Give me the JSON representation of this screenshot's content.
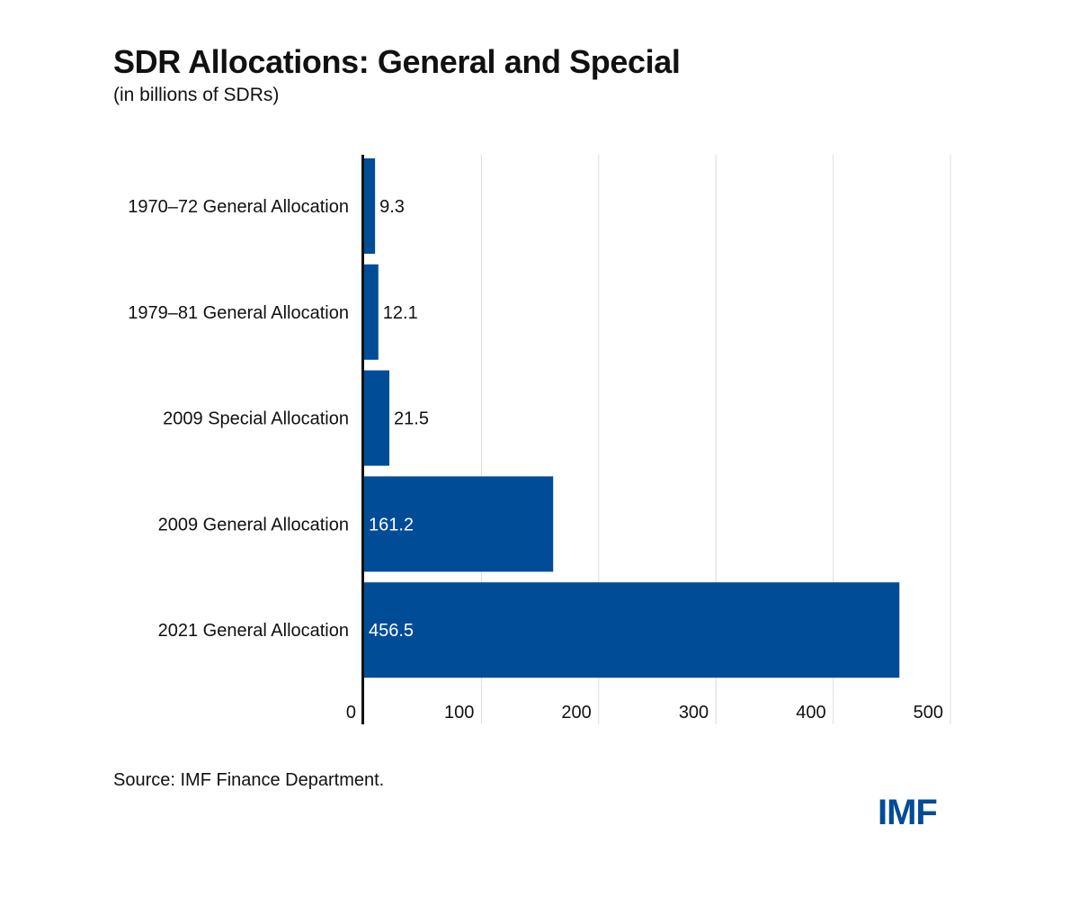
{
  "header": {
    "title": "SDR Allocations: General and Special",
    "subtitle": "(in billions of SDRs)"
  },
  "footer": {
    "source": "Source: IMF Finance Department.",
    "logo_text": "IMF"
  },
  "colors": {
    "bar": "#004C97",
    "gridline": "#DDDDDD",
    "axis": "#111111",
    "text": "#111111",
    "label_inside": "#ffffff"
  },
  "chart_data": {
    "type": "bar",
    "orientation": "horizontal",
    "categories": [
      "1970–72 General Allocation",
      "1979–81 General Allocation",
      "2009 Special Allocation",
      "2009 General Allocation",
      "2021 General Allocation"
    ],
    "values": [
      9.3,
      12.1,
      21.5,
      161.2,
      456.5
    ],
    "value_labels": [
      "9.3",
      "12.1",
      "21.5",
      "161.2",
      "456.5"
    ],
    "xlim": [
      0,
      500
    ],
    "xticks": [
      0,
      100,
      200,
      300,
      400,
      500
    ],
    "xtick_labels": [
      "0",
      "100",
      "200",
      "300",
      "400",
      "500"
    ],
    "grid": "vertical",
    "legend": "none"
  }
}
